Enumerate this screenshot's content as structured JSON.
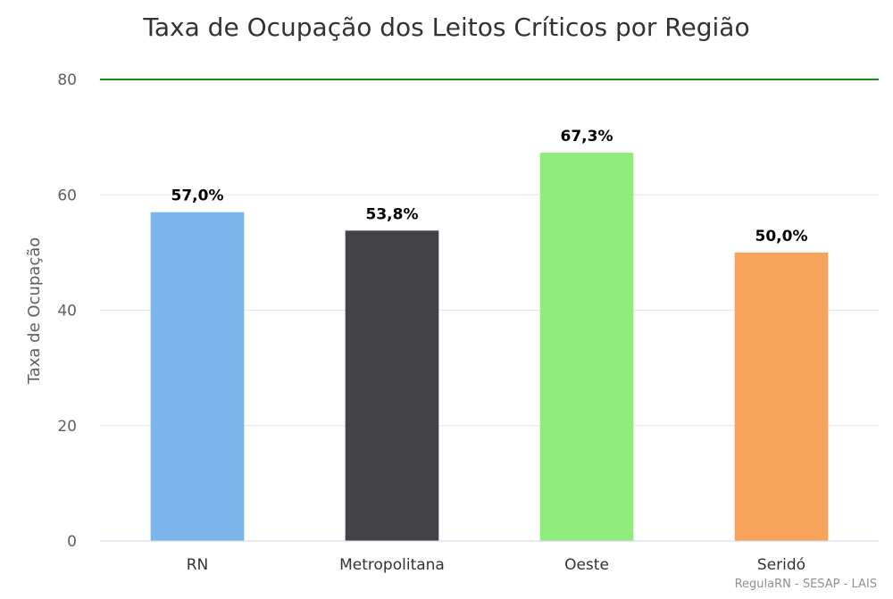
{
  "chart_data": {
    "type": "bar",
    "title": "Taxa de Ocupação dos Leitos Críticos por Região",
    "xlabel": "",
    "ylabel": "Taxa de Ocupação",
    "ylim": [
      0,
      80
    ],
    "yticks": [
      "0",
      "20",
      "40",
      "60",
      "80"
    ],
    "yticks_values": [
      0,
      20,
      40,
      60,
      80
    ],
    "grid": true,
    "categories": [
      "RN",
      "Metropolitana",
      "Oeste",
      "Seridó"
    ],
    "values": [
      57.0,
      53.8,
      67.3,
      50.0
    ],
    "data_labels": [
      "57,0%",
      "53,8%",
      "67,3%",
      "50,0%"
    ],
    "colors": [
      "#7cb5ec",
      "#434348",
      "#90ed7d",
      "#f7a35c"
    ],
    "reference_line": {
      "value": 80,
      "color": "#1a8a1a"
    },
    "credits": "RegulaRN - SESAP - LAIS"
  }
}
